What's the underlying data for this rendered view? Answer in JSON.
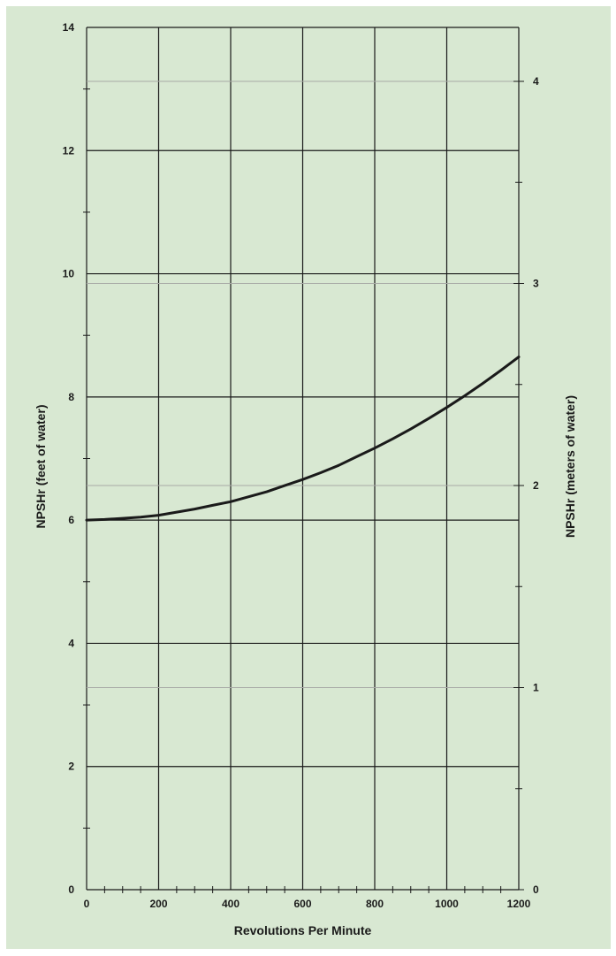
{
  "chart_data": {
    "type": "line",
    "title": "",
    "xlabel": "Revolutions Per Minute",
    "ylabel": "NPSHr (feet of water)",
    "y2label": "NPSHr (meters of water)",
    "xlim": [
      0,
      1200
    ],
    "ylim": [
      0,
      14
    ],
    "y2lim_m": [
      0,
      4.267
    ],
    "x_ticks": [
      "0",
      "200",
      "400",
      "600",
      "800",
      "1000",
      "1200"
    ],
    "y_ticks": [
      "0",
      "2",
      "4",
      "6",
      "8",
      "10",
      "12",
      "14"
    ],
    "y2_ticks": [
      "0",
      "1",
      "2",
      "3",
      "4"
    ],
    "grid": true,
    "series": [
      {
        "x": [
          0,
          50,
          100,
          150,
          200,
          250,
          300,
          350,
          400,
          450,
          500,
          550,
          600,
          650,
          700,
          750,
          800,
          850,
          900,
          950,
          1000,
          1050,
          1100,
          1150,
          1200
        ],
        "y": [
          6.0,
          6.01,
          6.03,
          6.05,
          6.08,
          6.13,
          6.18,
          6.24,
          6.3,
          6.38,
          6.46,
          6.56,
          6.66,
          6.77,
          6.89,
          7.03,
          7.17,
          7.32,
          7.48,
          7.65,
          7.83,
          8.02,
          8.22,
          8.43,
          8.65
        ]
      }
    ],
    "colors": {
      "background": "#d8e8d2",
      "line": "#1a1a1a",
      "grid": "#1a1a1a",
      "secondary_grid": "#a8aaa6"
    }
  }
}
